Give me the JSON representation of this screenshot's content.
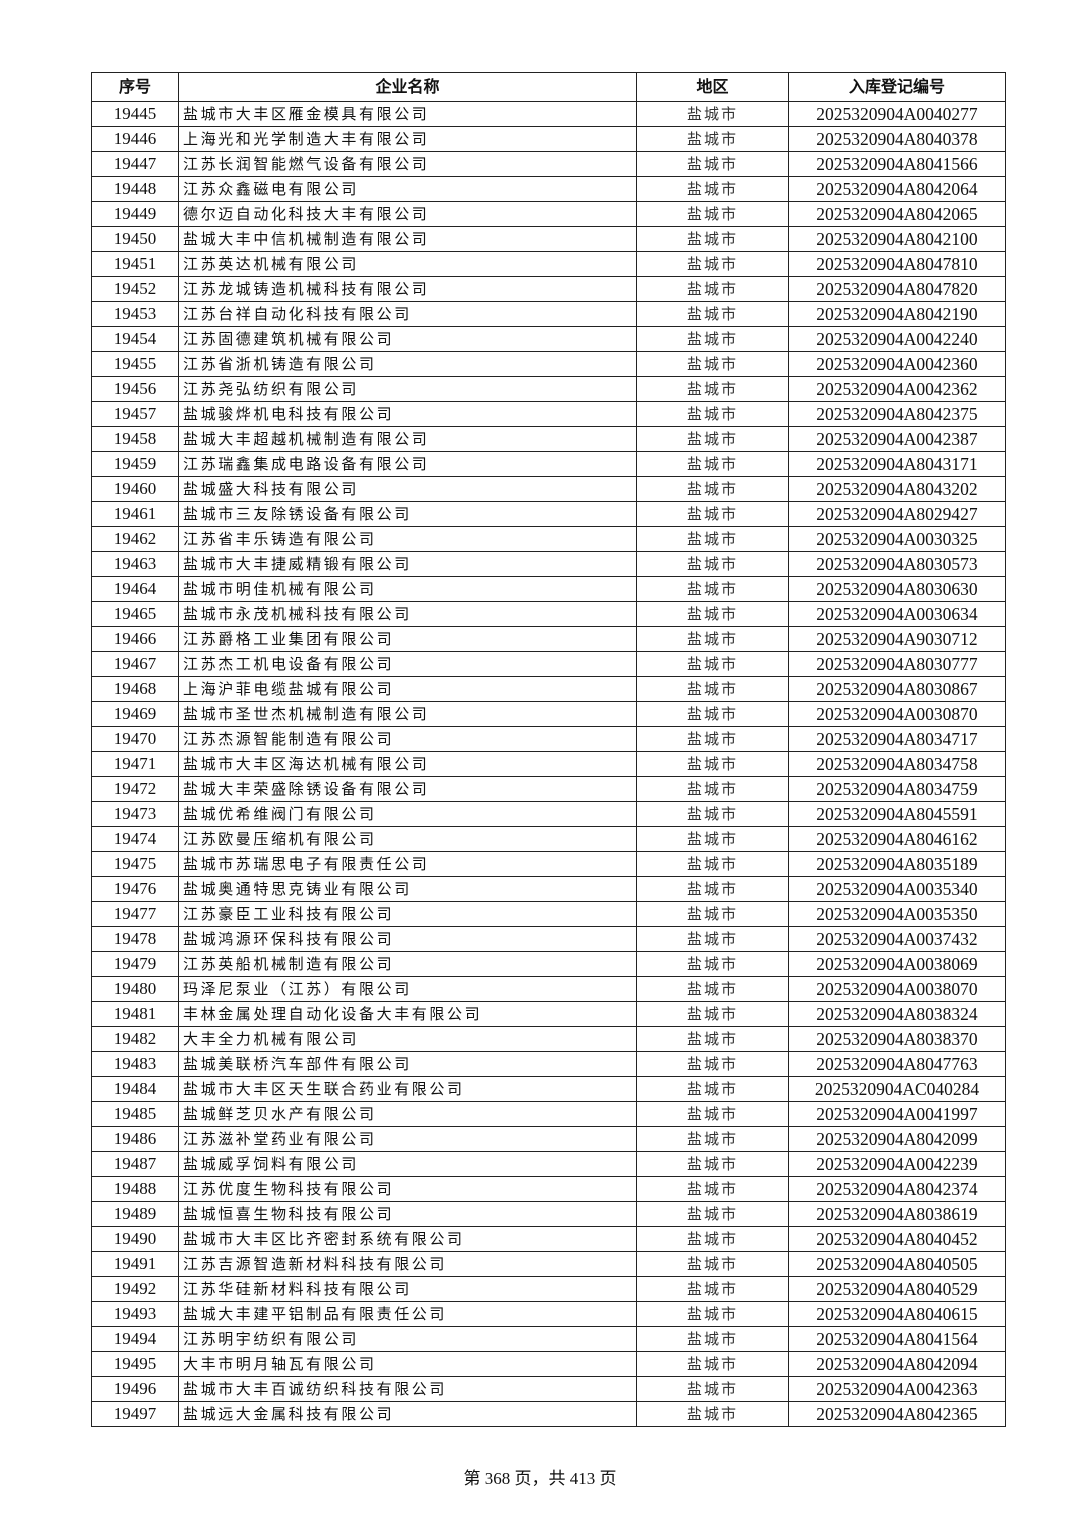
{
  "table": {
    "headers": [
      "序号",
      "企业名称",
      "地区",
      "入库登记编号"
    ],
    "rows": [
      [
        "19445",
        "盐城市大丰区雁金模具有限公司",
        "盐城市",
        "2025320904A0040277"
      ],
      [
        "19446",
        "上海光和光学制造大丰有限公司",
        "盐城市",
        "2025320904A8040378"
      ],
      [
        "19447",
        "江苏长润智能燃气设备有限公司",
        "盐城市",
        "2025320904A8041566"
      ],
      [
        "19448",
        "江苏众鑫磁电有限公司",
        "盐城市",
        "2025320904A8042064"
      ],
      [
        "19449",
        "德尔迈自动化科技大丰有限公司",
        "盐城市",
        "2025320904A8042065"
      ],
      [
        "19450",
        "盐城大丰中信机械制造有限公司",
        "盐城市",
        "2025320904A8042100"
      ],
      [
        "19451",
        "江苏英达机械有限公司",
        "盐城市",
        "2025320904A8047810"
      ],
      [
        "19452",
        "江苏龙城铸造机械科技有限公司",
        "盐城市",
        "2025320904A8047820"
      ],
      [
        "19453",
        "江苏台祥自动化科技有限公司",
        "盐城市",
        "2025320904A8042190"
      ],
      [
        "19454",
        "江苏固德建筑机械有限公司",
        "盐城市",
        "2025320904A0042240"
      ],
      [
        "19455",
        "江苏省浙机铸造有限公司",
        "盐城市",
        "2025320904A0042360"
      ],
      [
        "19456",
        "江苏尧弘纺织有限公司",
        "盐城市",
        "2025320904A0042362"
      ],
      [
        "19457",
        "盐城骏烨机电科技有限公司",
        "盐城市",
        "2025320904A8042375"
      ],
      [
        "19458",
        "盐城大丰超越机械制造有限公司",
        "盐城市",
        "2025320904A0042387"
      ],
      [
        "19459",
        "江苏瑞鑫集成电路设备有限公司",
        "盐城市",
        "2025320904A8043171"
      ],
      [
        "19460",
        "盐城盛大科技有限公司",
        "盐城市",
        "2025320904A8043202"
      ],
      [
        "19461",
        "盐城市三友除锈设备有限公司",
        "盐城市",
        "2025320904A8029427"
      ],
      [
        "19462",
        "江苏省丰乐铸造有限公司",
        "盐城市",
        "2025320904A0030325"
      ],
      [
        "19463",
        "盐城市大丰捷威精锻有限公司",
        "盐城市",
        "2025320904A8030573"
      ],
      [
        "19464",
        "盐城市明佳机械有限公司",
        "盐城市",
        "2025320904A8030630"
      ],
      [
        "19465",
        "盐城市永茂机械科技有限公司",
        "盐城市",
        "2025320904A0030634"
      ],
      [
        "19466",
        "江苏爵格工业集团有限公司",
        "盐城市",
        "2025320904A9030712"
      ],
      [
        "19467",
        "江苏杰工机电设备有限公司",
        "盐城市",
        "2025320904A8030777"
      ],
      [
        "19468",
        "上海沪菲电缆盐城有限公司",
        "盐城市",
        "2025320904A8030867"
      ],
      [
        "19469",
        "盐城市圣世杰机械制造有限公司",
        "盐城市",
        "2025320904A0030870"
      ],
      [
        "19470",
        "江苏杰源智能制造有限公司",
        "盐城市",
        "2025320904A8034717"
      ],
      [
        "19471",
        "盐城市大丰区海达机械有限公司",
        "盐城市",
        "2025320904A8034758"
      ],
      [
        "19472",
        "盐城大丰荣盛除锈设备有限公司",
        "盐城市",
        "2025320904A8034759"
      ],
      [
        "19473",
        "盐城优希维阀门有限公司",
        "盐城市",
        "2025320904A8045591"
      ],
      [
        "19474",
        "江苏欧曼压缩机有限公司",
        "盐城市",
        "2025320904A8046162"
      ],
      [
        "19475",
        "盐城市苏瑞思电子有限责任公司",
        "盐城市",
        "2025320904A8035189"
      ],
      [
        "19476",
        "盐城奥通特思克铸业有限公司",
        "盐城市",
        "2025320904A0035340"
      ],
      [
        "19477",
        "江苏豪臣工业科技有限公司",
        "盐城市",
        "2025320904A0035350"
      ],
      [
        "19478",
        "盐城鸿源环保科技有限公司",
        "盐城市",
        "2025320904A0037432"
      ],
      [
        "19479",
        "江苏英船机械制造有限公司",
        "盐城市",
        "2025320904A0038069"
      ],
      [
        "19480",
        "玛泽尼泵业（江苏）有限公司",
        "盐城市",
        "2025320904A0038070"
      ],
      [
        "19481",
        "丰林金属处理自动化设备大丰有限公司",
        "盐城市",
        "2025320904A8038324"
      ],
      [
        "19482",
        "大丰全力机械有限公司",
        "盐城市",
        "2025320904A8038370"
      ],
      [
        "19483",
        "盐城美联桥汽车部件有限公司",
        "盐城市",
        "2025320904A8047763"
      ],
      [
        "19484",
        "盐城市大丰区天生联合药业有限公司",
        "盐城市",
        "2025320904AC040284"
      ],
      [
        "19485",
        "盐城鲜芝贝水产有限公司",
        "盐城市",
        "2025320904A0041997"
      ],
      [
        "19486",
        "江苏滋补堂药业有限公司",
        "盐城市",
        "2025320904A8042099"
      ],
      [
        "19487",
        "盐城威孚饲料有限公司",
        "盐城市",
        "2025320904A0042239"
      ],
      [
        "19488",
        "江苏优度生物科技有限公司",
        "盐城市",
        "2025320904A8042374"
      ],
      [
        "19489",
        "盐城恒喜生物科技有限公司",
        "盐城市",
        "2025320904A8038619"
      ],
      [
        "19490",
        "盐城市大丰区比齐密封系统有限公司",
        "盐城市",
        "2025320904A8040452"
      ],
      [
        "19491",
        "江苏吉源智造新材料科技有限公司",
        "盐城市",
        "2025320904A8040505"
      ],
      [
        "19492",
        "江苏华硅新材料科技有限公司",
        "盐城市",
        "2025320904A8040529"
      ],
      [
        "19493",
        "盐城大丰建平铝制品有限责任公司",
        "盐城市",
        "2025320904A8040615"
      ],
      [
        "19494",
        "江苏明宇纺织有限公司",
        "盐城市",
        "2025320904A8041564"
      ],
      [
        "19495",
        "大丰市明月轴瓦有限公司",
        "盐城市",
        "2025320904A8042094"
      ],
      [
        "19496",
        "盐城市大丰百诚纺织科技有限公司",
        "盐城市",
        "2025320904A0042363"
      ],
      [
        "19497",
        "盐城远大金属科技有限公司",
        "盐城市",
        "2025320904A8042365"
      ]
    ]
  },
  "footer": {
    "page_label": "第 368 页，共 413 页"
  }
}
